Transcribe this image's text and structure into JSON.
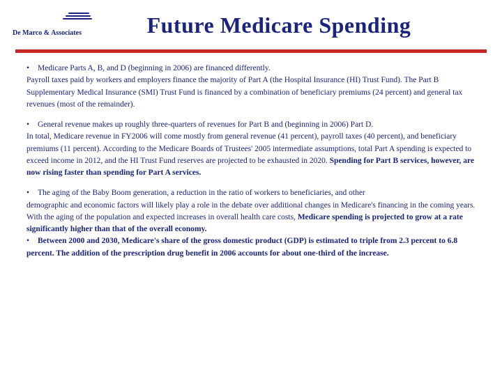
{
  "logo_text": "De Marco & Associates",
  "title": "Future Medicare Spending",
  "colors": {
    "text": "#1a237e",
    "divider": "#c62828",
    "background": "#ffffff"
  },
  "typography": {
    "title_fontsize": 32,
    "body_fontsize": 11.5,
    "font_family": "Georgia, serif"
  },
  "paragraphs": {
    "p1_lead": "Medicare Parts A, B, and D (beginning in 2006) are financed differently.",
    "p1_body": "Payroll taxes paid by workers and employers finance the majority of Part A (the Hospital Insurance (HI) Trust Fund). The Part B Supplementary Medical Insurance (SMI) Trust Fund is financed by a combination of beneficiary premiums (24 percent) and general tax revenues (most of the remainder).",
    "p2_lead": "General revenue makes up roughly three-quarters of revenues for Part B and (beginning in 2006) Part D.",
    "p2_body_a": "In total, Medicare revenue in FY2006 will come mostly from general revenue (41 percent), payroll taxes (40 percent), and beneficiary premiums (11 percent). According to the Medicare Boards of Trustees' 2005 intermediate assumptions, total Part A spending is expected to exceed income in 2012, and the HI Trust Fund reserves are projected to be exhausted in 2020. ",
    "p2_bold": "Spending for Part B services, however, are now rising faster than spending for Part A services.",
    "p3_lead": "The aging of the Baby Boom generation, a reduction in the ratio of workers to beneficiaries, and other",
    "p3_body_a": "demographic and economic factors will likely play a role in the debate over additional changes in Medicare's financing in the coming years. With the aging of the population and expected increases in overall health care costs, ",
    "p3_bold_a": "Medicare spending is projected to grow at a rate significantly higher than that of the overall economy.",
    "p4_bold": "Between 2000 and 2030, Medicare's share of the gross domestic product (GDP) is estimated to triple from 2.3 percent to 6.8 percent. The addition of the prescription drug benefit in 2006 accounts for about one-third of the increase."
  }
}
